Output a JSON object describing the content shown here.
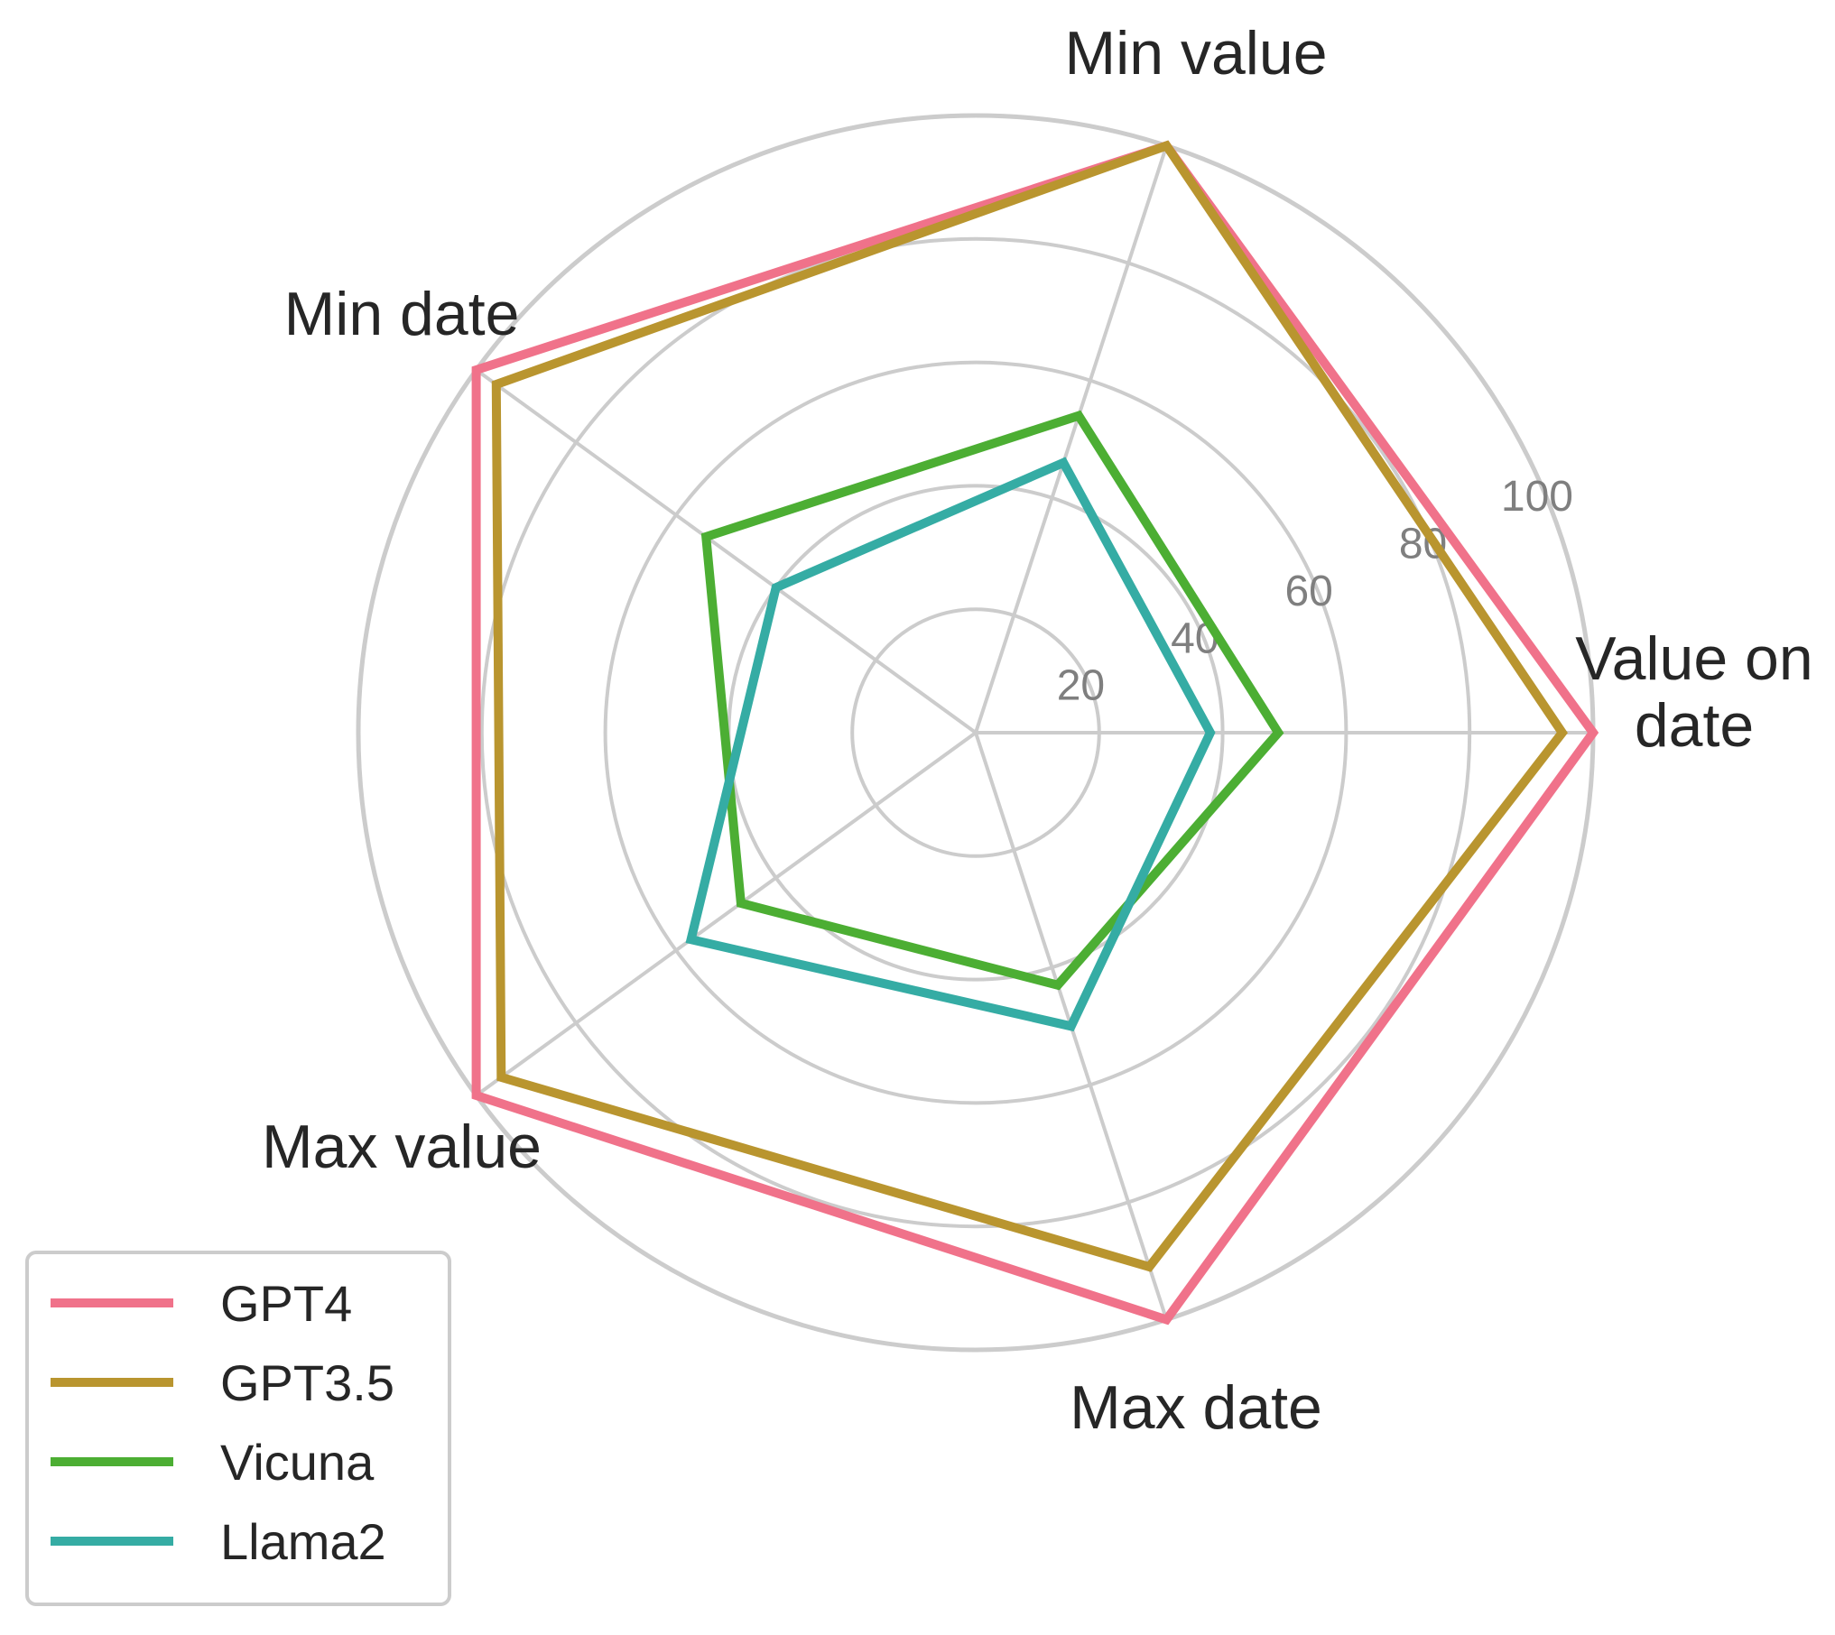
{
  "chart_data": {
    "type": "radar",
    "title": "",
    "categories": [
      "Value on\ndate",
      "Min value",
      "Min date",
      "Max value",
      "Max date"
    ],
    "radial_ticks": [
      "20",
      "40",
      "60",
      "80",
      "100"
    ],
    "rlim": [
      0,
      100
    ],
    "grid": true,
    "legend_position": "bottom-left",
    "series": [
      {
        "name": "GPT4",
        "color": "#f0728a",
        "values": [
          100,
          100,
          100,
          100,
          100
        ]
      },
      {
        "name": "GPT3.5",
        "color": "#b9952f",
        "values": [
          95,
          100,
          96,
          95,
          91
        ]
      },
      {
        "name": "Vicuna",
        "color": "#4cae33",
        "values": [
          49,
          54,
          54,
          47,
          43
        ]
      },
      {
        "name": "Llama2",
        "color": "#35aca4",
        "values": [
          38,
          46,
          40,
          57,
          50
        ]
      }
    ],
    "gridline_color": "#cccccc"
  }
}
